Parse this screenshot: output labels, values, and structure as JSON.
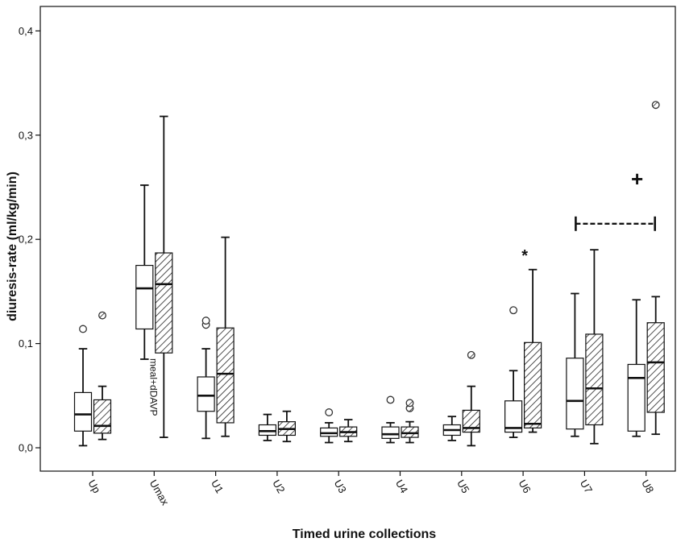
{
  "chart_data": {
    "type": "boxplot",
    "xlabel": "Timed urine collections",
    "ylabel": "diuresis-rate (ml/kg/min)",
    "ylim": [
      -0.02,
      0.42
    ],
    "yticks": [
      {
        "value": 0.0,
        "label": "0,0"
      },
      {
        "value": 0.1,
        "label": "0,1"
      },
      {
        "value": 0.2,
        "label": "0,2"
      },
      {
        "value": 0.3,
        "label": "0,3"
      },
      {
        "value": 0.4,
        "label": "0,4"
      }
    ],
    "categories": [
      "Up",
      "Umax",
      "U1",
      "U2",
      "U3",
      "U4",
      "U5",
      "U6",
      "U7",
      "U8"
    ],
    "series": [
      {
        "pattern": "none",
        "fill": "#ffffff",
        "boxes": [
          {
            "min": 0.002,
            "q1": 0.016,
            "median": 0.032,
            "q3": 0.053,
            "max": 0.095,
            "outliers": [
              0.114
            ]
          },
          {
            "min": 0.085,
            "q1": 0.114,
            "median": 0.153,
            "q3": 0.175,
            "max": 0.252,
            "outliers": []
          },
          {
            "min": 0.009,
            "q1": 0.035,
            "median": 0.05,
            "q3": 0.068,
            "max": 0.095,
            "outliers": [
              0.118,
              0.122
            ]
          },
          {
            "min": 0.007,
            "q1": 0.012,
            "median": 0.016,
            "q3": 0.022,
            "max": 0.032,
            "outliers": []
          },
          {
            "min": 0.005,
            "q1": 0.011,
            "median": 0.014,
            "q3": 0.019,
            "max": 0.024,
            "outliers": [
              0.034
            ]
          },
          {
            "min": 0.005,
            "q1": 0.009,
            "median": 0.013,
            "q3": 0.02,
            "max": 0.024,
            "outliers": [
              0.046
            ]
          },
          {
            "min": 0.007,
            "q1": 0.012,
            "median": 0.017,
            "q3": 0.022,
            "max": 0.03,
            "outliers": []
          },
          {
            "min": 0.01,
            "q1": 0.015,
            "median": 0.019,
            "q3": 0.045,
            "max": 0.074,
            "outliers": [
              0.132
            ]
          },
          {
            "min": 0.011,
            "q1": 0.018,
            "median": 0.045,
            "q3": 0.086,
            "max": 0.148,
            "outliers": []
          },
          {
            "min": 0.011,
            "q1": 0.016,
            "median": 0.067,
            "q3": 0.08,
            "max": 0.142,
            "outliers": []
          }
        ]
      },
      {
        "pattern": "hatched",
        "fill": "#ffffff",
        "boxes": [
          {
            "min": 0.008,
            "q1": 0.014,
            "median": 0.021,
            "q3": 0.046,
            "max": 0.059,
            "outliers": [
              0.127
            ]
          },
          {
            "min": 0.01,
            "q1": 0.091,
            "median": 0.157,
            "q3": 0.187,
            "max": 0.318,
            "outliers": []
          },
          {
            "min": 0.011,
            "q1": 0.024,
            "median": 0.071,
            "q3": 0.115,
            "max": 0.202,
            "outliers": []
          },
          {
            "min": 0.006,
            "q1": 0.012,
            "median": 0.018,
            "q3": 0.025,
            "max": 0.035,
            "outliers": []
          },
          {
            "min": 0.006,
            "q1": 0.011,
            "median": 0.015,
            "q3": 0.02,
            "max": 0.027,
            "outliers": []
          },
          {
            "min": 0.005,
            "q1": 0.01,
            "median": 0.014,
            "q3": 0.02,
            "max": 0.025,
            "outliers": [
              0.038,
              0.043
            ]
          },
          {
            "min": 0.002,
            "q1": 0.015,
            "median": 0.019,
            "q3": 0.036,
            "max": 0.059,
            "outliers": [
              0.089
            ]
          },
          {
            "min": 0.015,
            "q1": 0.019,
            "median": 0.023,
            "q3": 0.101,
            "max": 0.171,
            "outliers": []
          },
          {
            "min": 0.004,
            "q1": 0.022,
            "median": 0.057,
            "q3": 0.109,
            "max": 0.19,
            "outliers": []
          },
          {
            "min": 0.013,
            "q1": 0.034,
            "median": 0.082,
            "q3": 0.12,
            "max": 0.145,
            "outliers": [
              0.329
            ]
          }
        ]
      }
    ],
    "annotations": {
      "meal_label": {
        "text": "meal+dDAVP",
        "category": "Umax"
      },
      "u6_marker": {
        "text": "*",
        "category": "U6",
        "value": 0.19
      },
      "plus_marker": {
        "text": "+",
        "value": 0.258
      },
      "bracket": {
        "from": "U7",
        "to": "U8",
        "value": 0.215
      }
    }
  }
}
